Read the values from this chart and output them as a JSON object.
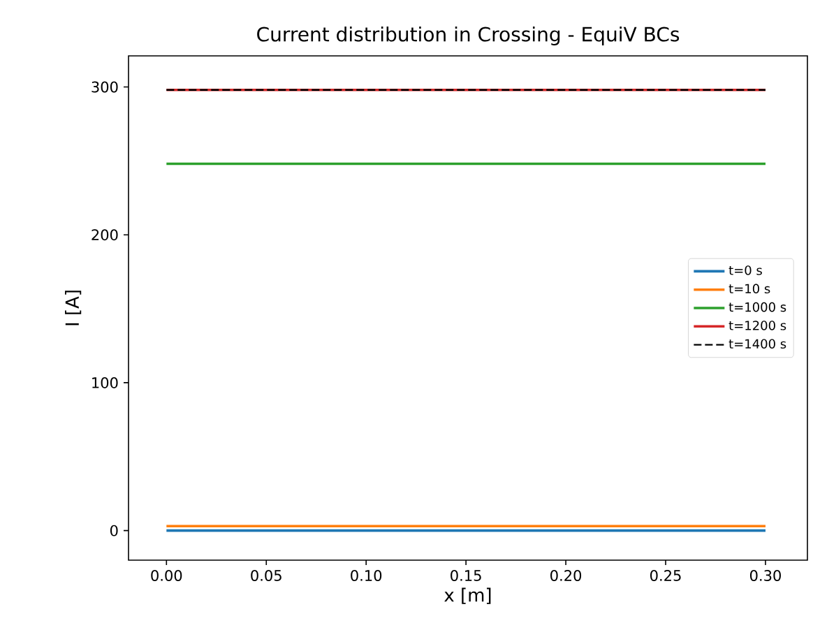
{
  "chart_data": {
    "type": "line",
    "title": "Current distribution in Crossing - EquiV BCs",
    "xlabel": "x [m]",
    "ylabel": "I [A]",
    "x": [
      0,
      0.3
    ],
    "series": [
      {
        "name": "t=0 s",
        "color": "#1f77b4",
        "values": [
          0,
          0
        ]
      },
      {
        "name": "t=10 s",
        "color": "#ff7f0e",
        "values": [
          3,
          3
        ]
      },
      {
        "name": "t=1000 s",
        "color": "#2ca02c",
        "values": [
          248,
          248
        ]
      },
      {
        "name": "t=1200 s",
        "color": "#d62728",
        "values": [
          298,
          298
        ]
      },
      {
        "name": "t=1400 s",
        "color": "#000000",
        "values": [
          298,
          298
        ],
        "line_style": "dashed"
      }
    ],
    "xlim": [
      -0.019,
      0.321
    ],
    "ylim": [
      -20,
      321
    ],
    "xticks": [
      {
        "value": 0,
        "label": "0.00"
      },
      0.05,
      {
        "value": 0.1,
        "label": "0.10"
      },
      0.15,
      {
        "value": 0.2,
        "label": "0.20"
      },
      0.25,
      {
        "value": 0.3,
        "label": "0.30"
      }
    ],
    "yticks": [
      0,
      100,
      200,
      300
    ],
    "grid": false,
    "legend": "right"
  }
}
